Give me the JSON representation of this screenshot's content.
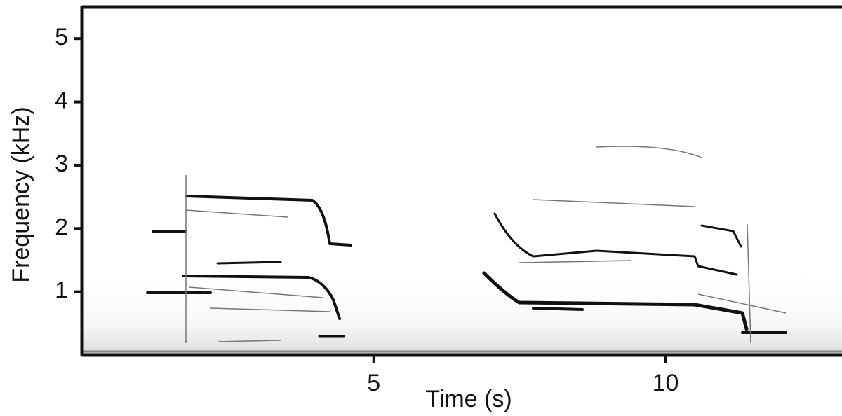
{
  "chart_data": {
    "type": "spectrogram",
    "xlabel": "Time (s)",
    "ylabel": "Frequency (kHz)",
    "xlim": [
      0,
      13
    ],
    "xticks": [
      5,
      10
    ],
    "ylim": [
      0,
      5.5
    ],
    "yticks": [
      1,
      2,
      3,
      4,
      5
    ],
    "color": "#111111"
  }
}
